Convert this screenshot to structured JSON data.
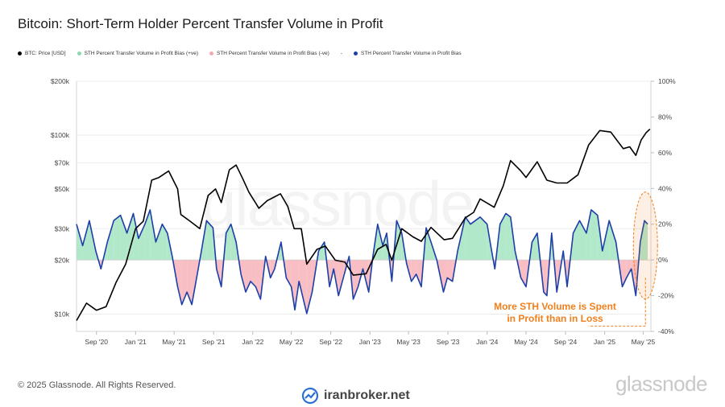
{
  "title": "Bitcoin: Short-Term Holder Percent Transfer Volume in Profit",
  "legend": {
    "price": "BTC: Price [USD]",
    "pos": "STH Percent Transfer Volume in Profit Bias (+ve)",
    "neg": "STH Percent Transfer Volume in Profit Bias (-ve)",
    "line": "STH Percent Transfer Volume in Profit Bias",
    "line_prefix": "-"
  },
  "watermark": "glassnode",
  "annotation": {
    "line1": "More STH Volume is Spent",
    "line2": "in Profit than in Loss"
  },
  "footer": "© 2025 Glassnode. All Rights Reserved.",
  "brand": "glassnode",
  "iranbroker": "iranbroker.net",
  "colors": {
    "price": "#000000",
    "pos_fill": "#a8e6c4",
    "neg_fill": "#f7b7bd",
    "bias_line": "#1c3fa8",
    "annotation": "#f07f1c"
  },
  "chart_data": {
    "type": "line",
    "left_axis": {
      "scale": "log",
      "range": [
        8000,
        200000
      ],
      "ticks": [
        10000,
        20000,
        30000,
        50000,
        70000,
        100000,
        200000
      ],
      "tick_labels": [
        "$10k",
        "$20k",
        "$30k",
        "$50k",
        "$70k",
        "$100k",
        "$200k"
      ]
    },
    "right_axis": {
      "range": [
        -40,
        100
      ],
      "ticks": [
        -40,
        -20,
        0,
        20,
        40,
        60,
        80,
        100
      ],
      "tick_labels": [
        "-40%",
        "-20%",
        "0%",
        "20%",
        "40%",
        "60%",
        "80%",
        "100%"
      ]
    },
    "x_axis": {
      "range": [
        "2020-07-01",
        "2025-05-25"
      ],
      "ticks": [
        "2020-09-01",
        "2021-01-01",
        "2021-05-01",
        "2021-09-01",
        "2022-01-01",
        "2022-05-01",
        "2022-09-01",
        "2023-01-01",
        "2023-05-01",
        "2023-09-01",
        "2024-01-01",
        "2024-05-01",
        "2024-09-01",
        "2025-01-01",
        "2025-05-01"
      ],
      "tick_labels": [
        "Sep '20",
        "Jan '21",
        "May '21",
        "Sep '21",
        "Jan '22",
        "May '22",
        "Sep '22",
        "Jan '23",
        "May '23",
        "Sep '23",
        "Jan '24",
        "May '24",
        "Sep '24",
        "Jan '25",
        "May '25"
      ]
    },
    "series": [
      {
        "name": "BTC: Price [USD]",
        "axis": "left",
        "points": [
          [
            "2020-07-01",
            9200
          ],
          [
            "2020-08-01",
            11500
          ],
          [
            "2020-09-01",
            10500
          ],
          [
            "2020-10-01",
            11000
          ],
          [
            "2020-11-01",
            15000
          ],
          [
            "2020-12-01",
            19000
          ],
          [
            "2021-01-01",
            30000
          ],
          [
            "2021-01-25",
            33000
          ],
          [
            "2021-02-20",
            56000
          ],
          [
            "2021-03-15",
            58000
          ],
          [
            "2021-04-14",
            63000
          ],
          [
            "2021-05-12",
            50000
          ],
          [
            "2021-05-22",
            36000
          ],
          [
            "2021-06-20",
            33000
          ],
          [
            "2021-07-20",
            30000
          ],
          [
            "2021-08-15",
            46000
          ],
          [
            "2021-09-07",
            50000
          ],
          [
            "2021-09-25",
            42000
          ],
          [
            "2021-10-20",
            64000
          ],
          [
            "2021-11-10",
            68000
          ],
          [
            "2021-12-01",
            57000
          ],
          [
            "2021-12-20",
            48000
          ],
          [
            "2022-01-20",
            39000
          ],
          [
            "2022-02-15",
            43000
          ],
          [
            "2022-03-28",
            47000
          ],
          [
            "2022-04-20",
            40000
          ],
          [
            "2022-05-10",
            30000
          ],
          [
            "2022-06-01",
            30000
          ],
          [
            "2022-06-18",
            19000
          ],
          [
            "2022-07-20",
            23000
          ],
          [
            "2022-08-15",
            24000
          ],
          [
            "2022-09-15",
            20000
          ],
          [
            "2022-10-15",
            19500
          ],
          [
            "2022-11-10",
            16500
          ],
          [
            "2022-12-20",
            16800
          ],
          [
            "2023-01-25",
            23000
          ],
          [
            "2023-02-20",
            24500
          ],
          [
            "2023-03-10",
            20000
          ],
          [
            "2023-04-10",
            30000
          ],
          [
            "2023-05-15",
            27000
          ],
          [
            "2023-06-10",
            25500
          ],
          [
            "2023-07-10",
            30500
          ],
          [
            "2023-08-20",
            26000
          ],
          [
            "2023-09-15",
            26500
          ],
          [
            "2023-10-25",
            34500
          ],
          [
            "2023-11-20",
            37000
          ],
          [
            "2023-12-10",
            44000
          ],
          [
            "2024-01-23",
            39500
          ],
          [
            "2024-02-20",
            52000
          ],
          [
            "2024-03-14",
            72000
          ],
          [
            "2024-04-15",
            63000
          ],
          [
            "2024-05-01",
            58000
          ],
          [
            "2024-06-05",
            71000
          ],
          [
            "2024-07-05",
            56000
          ],
          [
            "2024-08-05",
            54000
          ],
          [
            "2024-09-06",
            54000
          ],
          [
            "2024-10-10",
            60000
          ],
          [
            "2024-11-12",
            88000
          ],
          [
            "2024-12-17",
            106000
          ],
          [
            "2025-01-20",
            104000
          ],
          [
            "2025-02-28",
            84000
          ],
          [
            "2025-03-20",
            86000
          ],
          [
            "2025-04-08",
            77000
          ],
          [
            "2025-04-25",
            94000
          ],
          [
            "2025-05-10",
            103000
          ],
          [
            "2025-05-22",
            108000
          ]
        ]
      },
      {
        "name": "STH Percent Transfer Volume in Profit Bias",
        "axis": "right",
        "points": [
          [
            "2020-07-01",
            20
          ],
          [
            "2020-07-20",
            8
          ],
          [
            "2020-08-10",
            22
          ],
          [
            "2020-08-30",
            5
          ],
          [
            "2020-09-15",
            -5
          ],
          [
            "2020-10-05",
            10
          ],
          [
            "2020-10-25",
            22
          ],
          [
            "2020-11-15",
            25
          ],
          [
            "2020-12-05",
            15
          ],
          [
            "2020-12-25",
            26
          ],
          [
            "2021-01-10",
            12
          ],
          [
            "2021-01-30",
            20
          ],
          [
            "2021-02-15",
            28
          ],
          [
            "2021-03-05",
            10
          ],
          [
            "2021-03-25",
            20
          ],
          [
            "2021-04-10",
            15
          ],
          [
            "2021-04-25",
            2
          ],
          [
            "2021-05-12",
            -15
          ],
          [
            "2021-05-25",
            -25
          ],
          [
            "2021-06-10",
            -18
          ],
          [
            "2021-06-25",
            -25
          ],
          [
            "2021-07-10",
            -10
          ],
          [
            "2021-07-25",
            5
          ],
          [
            "2021-08-10",
            22
          ],
          [
            "2021-08-30",
            18
          ],
          [
            "2021-09-10",
            -5
          ],
          [
            "2021-09-25",
            -15
          ],
          [
            "2021-10-10",
            15
          ],
          [
            "2021-10-25",
            20
          ],
          [
            "2021-11-10",
            10
          ],
          [
            "2021-11-25",
            -8
          ],
          [
            "2021-12-10",
            -18
          ],
          [
            "2021-12-25",
            -12
          ],
          [
            "2022-01-10",
            -15
          ],
          [
            "2022-01-25",
            -22
          ],
          [
            "2022-02-10",
            2
          ],
          [
            "2022-02-25",
            -10
          ],
          [
            "2022-03-10",
            -5
          ],
          [
            "2022-03-30",
            10
          ],
          [
            "2022-04-15",
            -10
          ],
          [
            "2022-05-01",
            -15
          ],
          [
            "2022-05-12",
            -28
          ],
          [
            "2022-05-25",
            -12
          ],
          [
            "2022-06-18",
            -30
          ],
          [
            "2022-07-05",
            -18
          ],
          [
            "2022-07-25",
            5
          ],
          [
            "2022-08-12",
            10
          ],
          [
            "2022-08-28",
            -15
          ],
          [
            "2022-09-10",
            -5
          ],
          [
            "2022-09-25",
            -20
          ],
          [
            "2022-10-10",
            -10
          ],
          [
            "2022-10-28",
            2
          ],
          [
            "2022-11-10",
            -22
          ],
          [
            "2022-11-25",
            -15
          ],
          [
            "2022-12-10",
            -5
          ],
          [
            "2022-12-28",
            -18
          ],
          [
            "2023-01-10",
            2
          ],
          [
            "2023-01-25",
            20
          ],
          [
            "2023-02-10",
            8
          ],
          [
            "2023-02-22",
            15
          ],
          [
            "2023-03-10",
            -12
          ],
          [
            "2023-03-25",
            22
          ],
          [
            "2023-04-10",
            15
          ],
          [
            "2023-04-25",
            -2
          ],
          [
            "2023-05-10",
            -12
          ],
          [
            "2023-05-25",
            -8
          ],
          [
            "2023-06-10",
            -15
          ],
          [
            "2023-06-25",
            18
          ],
          [
            "2023-07-10",
            10
          ],
          [
            "2023-07-28",
            0
          ],
          [
            "2023-08-18",
            -18
          ],
          [
            "2023-08-30",
            -10
          ],
          [
            "2023-09-15",
            -12
          ],
          [
            "2023-10-01",
            5
          ],
          [
            "2023-10-25",
            24
          ],
          [
            "2023-11-10",
            20
          ],
          [
            "2023-11-25",
            22
          ],
          [
            "2023-12-10",
            24
          ],
          [
            "2024-01-01",
            20
          ],
          [
            "2024-01-15",
            5
          ],
          [
            "2024-01-25",
            -5
          ],
          [
            "2024-02-10",
            20
          ],
          [
            "2024-02-28",
            26
          ],
          [
            "2024-03-14",
            24
          ],
          [
            "2024-03-28",
            5
          ],
          [
            "2024-04-15",
            -10
          ],
          [
            "2024-05-01",
            -15
          ],
          [
            "2024-05-20",
            10
          ],
          [
            "2024-06-05",
            15
          ],
          [
            "2024-06-25",
            -18
          ],
          [
            "2024-07-05",
            -20
          ],
          [
            "2024-07-20",
            15
          ],
          [
            "2024-08-05",
            -18
          ],
          [
            "2024-08-25",
            5
          ],
          [
            "2024-09-06",
            -15
          ],
          [
            "2024-09-25",
            15
          ],
          [
            "2024-10-15",
            22
          ],
          [
            "2024-11-05",
            15
          ],
          [
            "2024-11-20",
            28
          ],
          [
            "2024-12-10",
            25
          ],
          [
            "2024-12-25",
            5
          ],
          [
            "2025-01-15",
            22
          ],
          [
            "2025-02-05",
            10
          ],
          [
            "2025-02-25",
            -15
          ],
          [
            "2025-03-10",
            -10
          ],
          [
            "2025-03-25",
            -5
          ],
          [
            "2025-04-08",
            -20
          ],
          [
            "2025-04-22",
            10
          ],
          [
            "2025-05-05",
            22
          ],
          [
            "2025-05-15",
            20
          ]
        ]
      }
    ]
  }
}
